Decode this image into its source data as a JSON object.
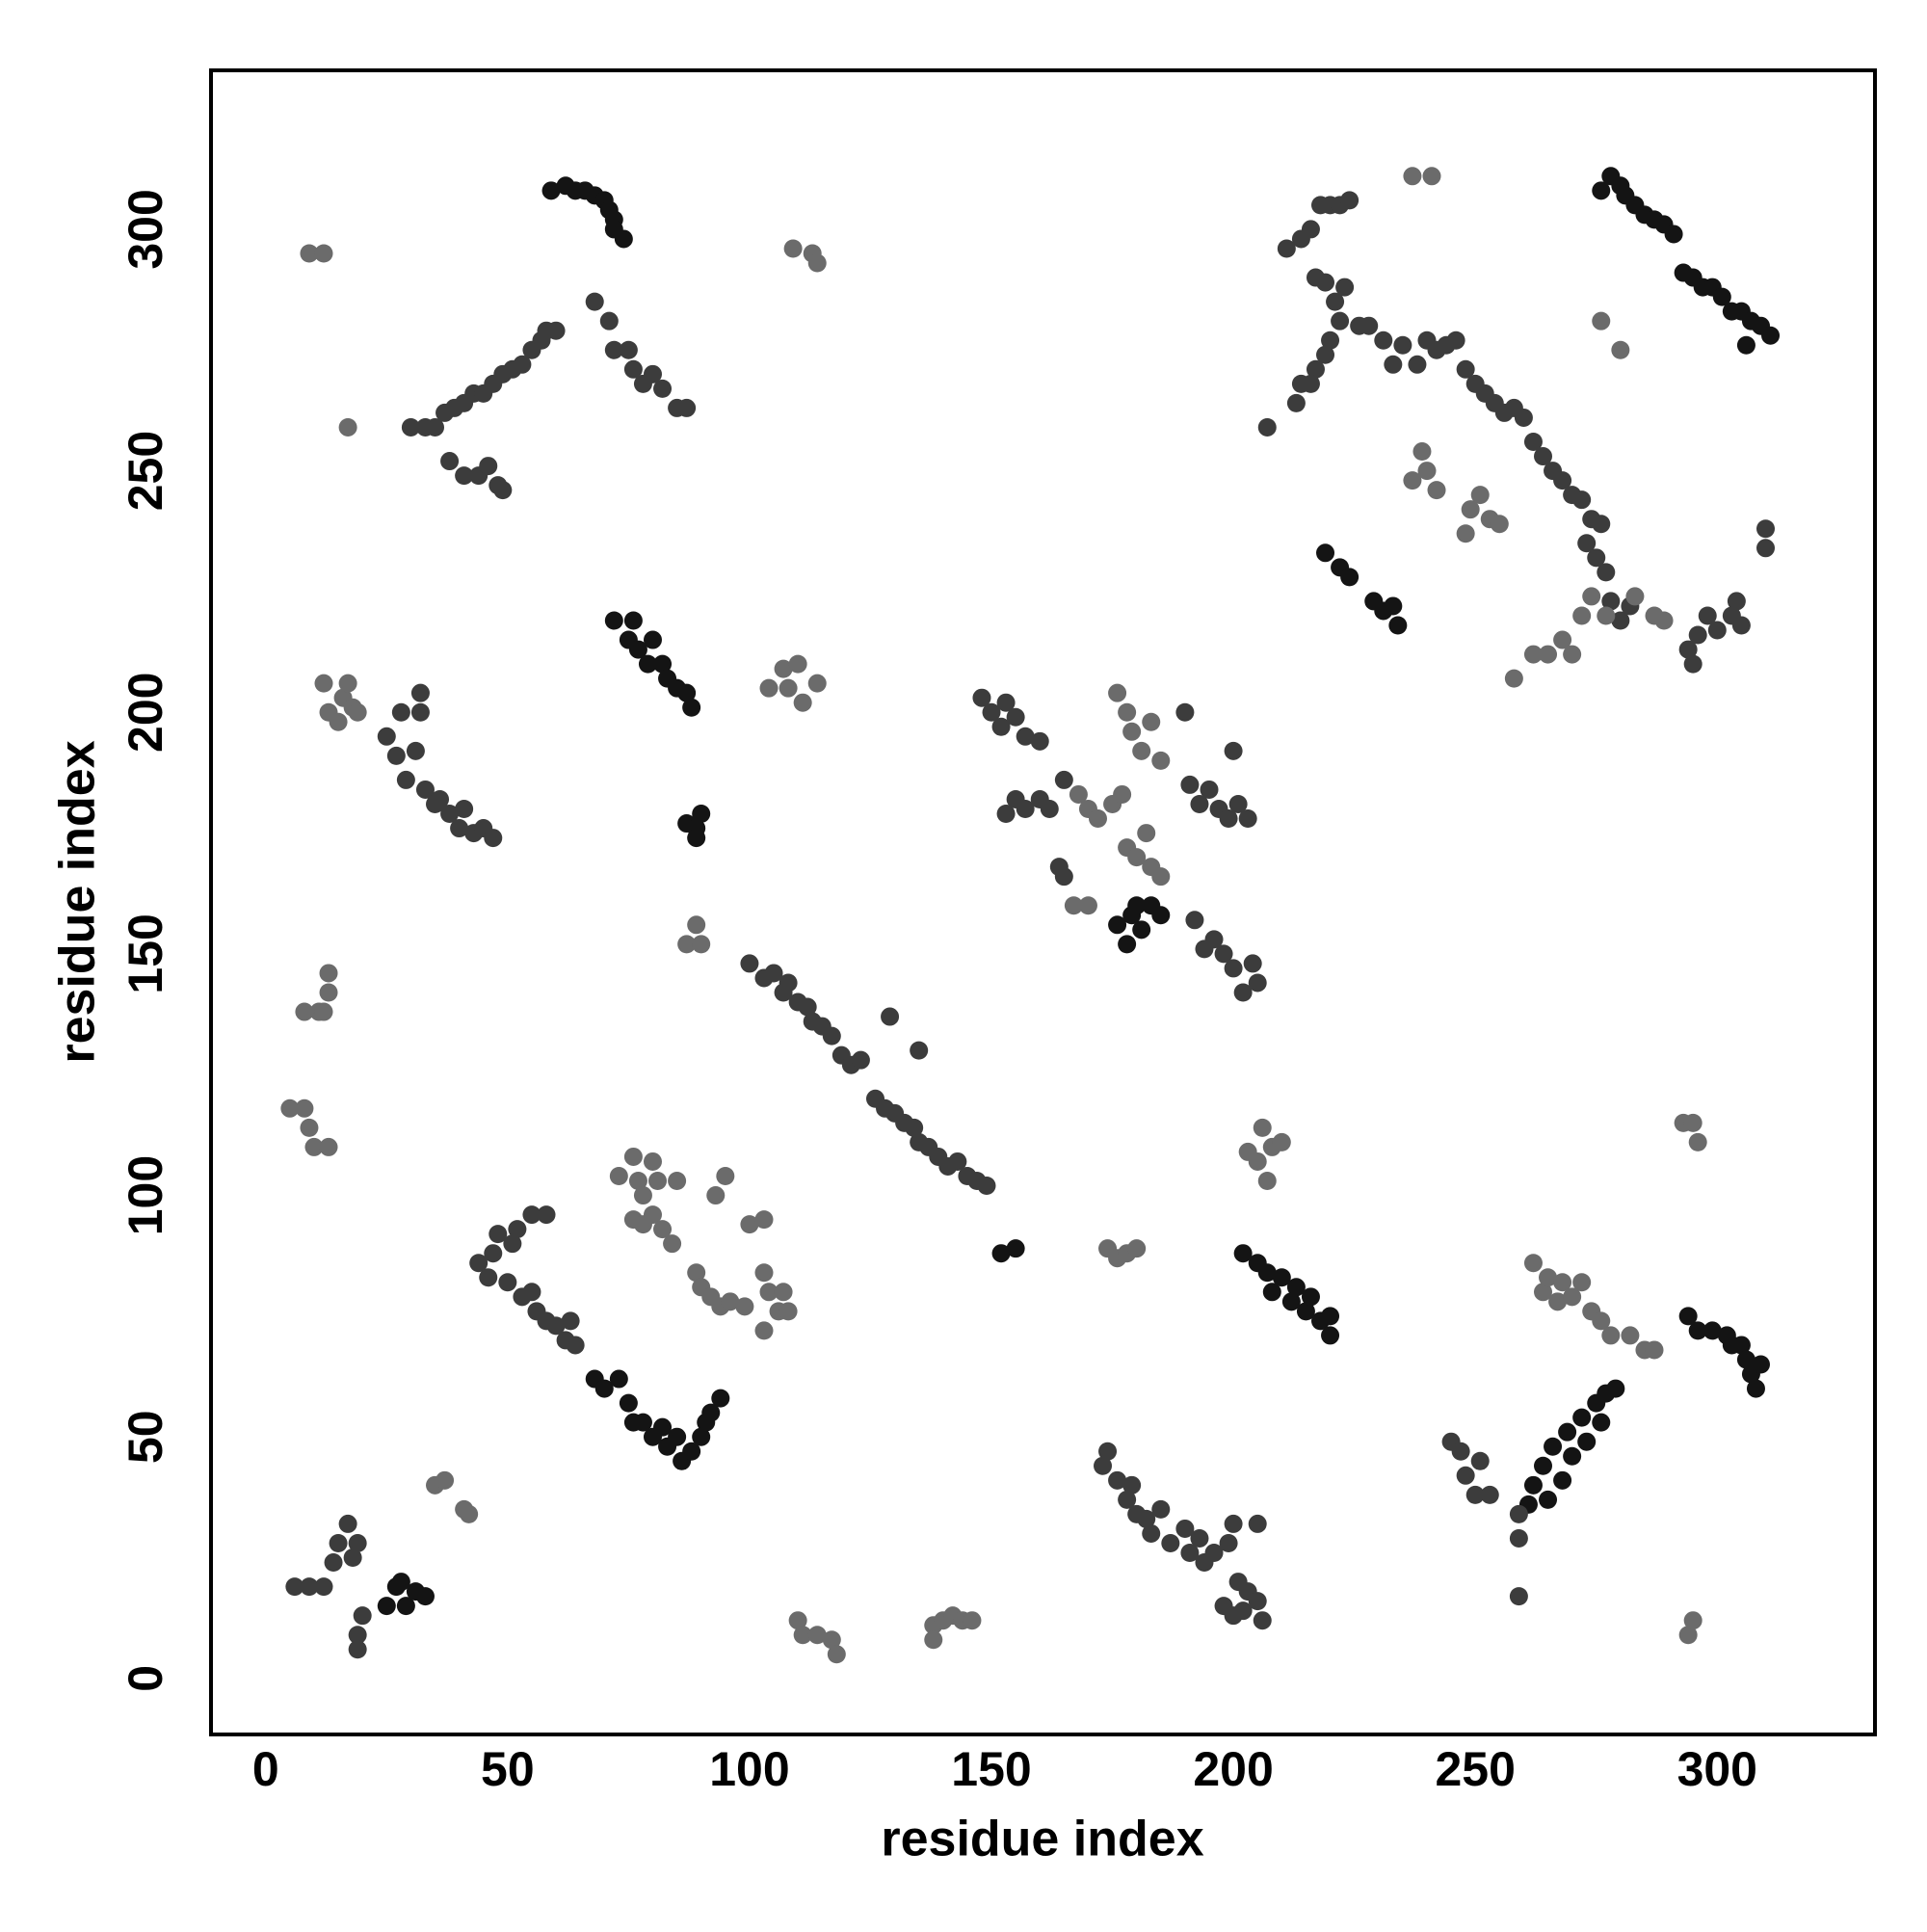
{
  "chart_data": {
    "type": "scatter",
    "x_label": "residue index",
    "y_label": "residue index",
    "xlim": [
      -11.3,
      332.6
    ],
    "ylim": [
      -11.6,
      332.9
    ],
    "xticks": [
      0,
      50,
      100,
      150,
      200,
      250,
      300
    ],
    "yticks": [
      0,
      50,
      100,
      150,
      200,
      250,
      300
    ],
    "series": [
      {
        "color": "#141414",
        "x": [
          59,
          62,
          64,
          66,
          68,
          70,
          71,
          72,
          72,
          74,
          72,
          75,
          76,
          77,
          79,
          80,
          82,
          83,
          85,
          87,
          88,
          176,
          178,
          179,
          181,
          183,
          185,
          180,
          202,
          205,
          207,
          208,
          210,
          212,
          213,
          215,
          216,
          218,
          220,
          220,
          68,
          70,
          73,
          75,
          76,
          78,
          80,
          82,
          83,
          85,
          86,
          88,
          90,
          91,
          92,
          94,
          261,
          262,
          264,
          265,
          266,
          268,
          269,
          270,
          272,
          273,
          275,
          276,
          277,
          279,
          276,
          278,
          280,
          281,
          283,
          285,
          287,
          289,
          291,
          293,
          295,
          297,
          299,
          301,
          303,
          305,
          307,
          309,
          311,
          306,
          219,
          222,
          224,
          229,
          231,
          233,
          234,
          87,
          89,
          90,
          89,
          152,
          155,
          25,
          27,
          28,
          29,
          31,
          33,
          294,
          296,
          299,
          302,
          303,
          305,
          306,
          307,
          308,
          309
        ],
        "y": [
          308,
          309,
          308,
          308,
          307,
          306,
          304,
          302,
          300,
          298,
          219,
          215,
          219,
          213,
          210,
          215,
          210,
          207,
          205,
          204,
          201,
          156,
          152,
          158,
          155,
          160,
          158,
          160,
          88,
          86,
          84,
          80,
          83,
          78,
          81,
          76,
          79,
          74,
          71,
          75,
          62,
          60,
          62,
          57,
          53,
          53,
          50,
          52,
          48,
          50,
          45,
          47,
          50,
          53,
          55,
          58,
          36,
          40,
          44,
          37,
          48,
          41,
          51,
          46,
          54,
          49,
          57,
          53,
          59,
          60,
          308,
          311,
          309,
          307,
          305,
          303,
          302,
          301,
          299,
          291,
          290,
          288,
          288,
          286,
          283,
          283,
          281,
          280,
          278,
          276,
          233,
          230,
          228,
          223,
          221,
          222,
          218,
          177,
          176,
          179,
          174,
          88,
          89,
          15,
          19,
          20,
          15,
          18,
          17,
          75,
          72,
          72,
          71,
          69,
          69,
          66,
          63,
          60,
          65
        ]
      },
      {
        "color": "#3c3c3c",
        "x": [
          30,
          33,
          35,
          37,
          39,
          41,
          43,
          45,
          47,
          49,
          51,
          53,
          55,
          57,
          58,
          60,
          68,
          71,
          72,
          75,
          76,
          78,
          80,
          82,
          85,
          87,
          25,
          27,
          28,
          29,
          31,
          32,
          32,
          33,
          35,
          36,
          38,
          40,
          41,
          43,
          45,
          47,
          100,
          103,
          105,
          107,
          108,
          110,
          112,
          113,
          115,
          117,
          119,
          121,
          123,
          126,
          128,
          130,
          132,
          134,
          135,
          137,
          139,
          141,
          143,
          145,
          147,
          149,
          129,
          135,
          148,
          150,
          152,
          153,
          155,
          157,
          160,
          153,
          155,
          157,
          160,
          162,
          165,
          164,
          165,
          190,
          191,
          193,
          195,
          197,
          199,
          200,
          201,
          203,
          192,
          194,
          196,
          198,
          200,
          202,
          204,
          205,
          44,
          46,
          47,
          48,
          50,
          51,
          52,
          53,
          55,
          55,
          56,
          58,
          58,
          60,
          62,
          63,
          64,
          6,
          9,
          12,
          14,
          15,
          17,
          18,
          19,
          20,
          19,
          19,
          173,
          174,
          176,
          178,
          179,
          180,
          182,
          183,
          185,
          187,
          190,
          191,
          193,
          194,
          196,
          198,
          199,
          200,
          201,
          200,
          202,
          203,
          205,
          206,
          205,
          245,
          247,
          248,
          250,
          251,
          253,
          259,
          259,
          259,
          211,
          214,
          216,
          218,
          220,
          222,
          224,
          217,
          219,
          221,
          223,
          222,
          226,
          213,
          214,
          217,
          219,
          216,
          220,
          207,
          228,
          231,
          233,
          235,
          238,
          240,
          242,
          244,
          246,
          248,
          250,
          252,
          254,
          256,
          258,
          260,
          262,
          264,
          266,
          268,
          270,
          272,
          274,
          276,
          273,
          275,
          277,
          278,
          280,
          282,
          294,
          296,
          298,
          300,
          303,
          304,
          305,
          310,
          310,
          295,
          38,
          41,
          44,
          46,
          48,
          49
        ],
        "y": [
          259,
          259,
          259,
          262,
          263,
          264,
          266,
          266,
          268,
          270,
          271,
          272,
          275,
          277,
          279,
          279,
          285,
          281,
          275,
          275,
          271,
          268,
          270,
          267,
          263,
          263,
          195,
          191,
          200,
          186,
          192,
          200,
          204,
          184,
          181,
          182,
          179,
          176,
          180,
          175,
          176,
          174,
          148,
          145,
          146,
          142,
          144,
          140,
          139,
          136,
          135,
          133,
          129,
          127,
          128,
          120,
          118,
          117,
          115,
          114,
          111,
          110,
          108,
          106,
          107,
          104,
          103,
          102,
          137,
          130,
          203,
          200,
          197,
          202,
          199,
          195,
          194,
          179,
          182,
          180,
          182,
          180,
          186,
          168,
          166,
          200,
          185,
          181,
          184,
          180,
          178,
          192,
          181,
          178,
          157,
          151,
          153,
          150,
          147,
          142,
          148,
          144,
          86,
          83,
          88,
          92,
          82,
          90,
          93,
          79,
          96,
          80,
          76,
          96,
          74,
          73,
          70,
          74,
          69,
          19,
          19,
          19,
          24,
          28,
          32,
          25,
          28,
          13,
          9,
          6,
          44,
          47,
          41,
          37,
          40,
          34,
          33,
          30,
          35,
          28,
          31,
          26,
          29,
          24,
          26,
          15,
          28,
          32,
          20,
          13,
          14,
          18,
          16,
          12,
          32,
          49,
          47,
          42,
          38,
          45,
          38,
          34,
          29,
          17,
          296,
          298,
          300,
          305,
          305,
          305,
          306,
          290,
          289,
          285,
          288,
          281,
          280,
          264,
          268,
          271,
          274,
          268,
          277,
          259,
          280,
          277,
          272,
          276,
          272,
          277,
          275,
          276,
          277,
          271,
          268,
          266,
          264,
          262,
          263,
          261,
          256,
          253,
          250,
          248,
          245,
          244,
          240,
          239,
          235,
          232,
          229,
          223,
          219,
          222,
          213,
          216,
          220,
          217,
          220,
          223,
          218,
          234,
          238,
          210,
          252,
          249,
          249,
          251,
          247,
          246
        ]
      },
      {
        "color": "#6b6b6b",
        "x": [
          17,
          9,
          12,
          109,
          113,
          114,
          104,
          107,
          108,
          110,
          111,
          114,
          12,
          13,
          15,
          16,
          17,
          18,
          19,
          87,
          89,
          90,
          11,
          13,
          13,
          12,
          8,
          5,
          8,
          9,
          10,
          13,
          167,
          170,
          168,
          170,
          172,
          175,
          177,
          176,
          178,
          179,
          181,
          183,
          185,
          178,
          180,
          182,
          183,
          185,
          203,
          205,
          206,
          207,
          208,
          210,
          174,
          176,
          178,
          180,
          73,
          76,
          77,
          78,
          80,
          81,
          76,
          78,
          80,
          82,
          84,
          85,
          89,
          90,
          92,
          94,
          93,
          95,
          96,
          99,
          100,
          103,
          103,
          104,
          106,
          107,
          108,
          103,
          35,
          37,
          41,
          42,
          110,
          111,
          114,
          117,
          118,
          138,
          140,
          142,
          144,
          146,
          138,
          262,
          264,
          265,
          267,
          268,
          270,
          272,
          274,
          276,
          278,
          282,
          285,
          287,
          293,
          295,
          296,
          294,
          295,
          237,
          241,
          276,
          280,
          237,
          239,
          240,
          242,
          249,
          248,
          251,
          253,
          255,
          258,
          262,
          265,
          268,
          270,
          272,
          274,
          277,
          283,
          287,
          289
        ],
        "y": [
          259,
          295,
          295,
          296,
          295,
          293,
          205,
          209,
          205,
          210,
          202,
          206,
          206,
          200,
          198,
          203,
          206,
          201,
          200,
          152,
          156,
          152,
          138,
          142,
          146,
          138,
          138,
          118,
          118,
          114,
          110,
          110,
          160,
          160,
          183,
          180,
          178,
          181,
          183,
          204,
          200,
          196,
          192,
          198,
          190,
          172,
          170,
          175,
          168,
          166,
          109,
          107,
          114,
          103,
          110,
          111,
          89,
          87,
          88,
          89,
          104,
          108,
          103,
          100,
          107,
          103,
          95,
          94,
          96,
          93,
          90,
          103,
          84,
          81,
          79,
          77,
          100,
          104,
          78,
          77,
          94,
          95,
          84,
          80,
          76,
          80,
          76,
          72,
          40,
          41,
          35,
          34,
          12,
          9,
          9,
          8,
          5,
          11,
          12,
          13,
          12,
          12,
          8,
          86,
          80,
          83,
          78,
          82,
          79,
          82,
          76,
          74,
          71,
          71,
          68,
          68,
          115,
          115,
          111,
          9,
          12,
          311,
          311,
          281,
          275,
          248,
          254,
          250,
          246,
          242,
          237,
          245,
          240,
          239,
          207,
          212,
          212,
          215,
          212,
          220,
          224,
          220,
          224,
          220,
          219
        ]
      }
    ]
  }
}
